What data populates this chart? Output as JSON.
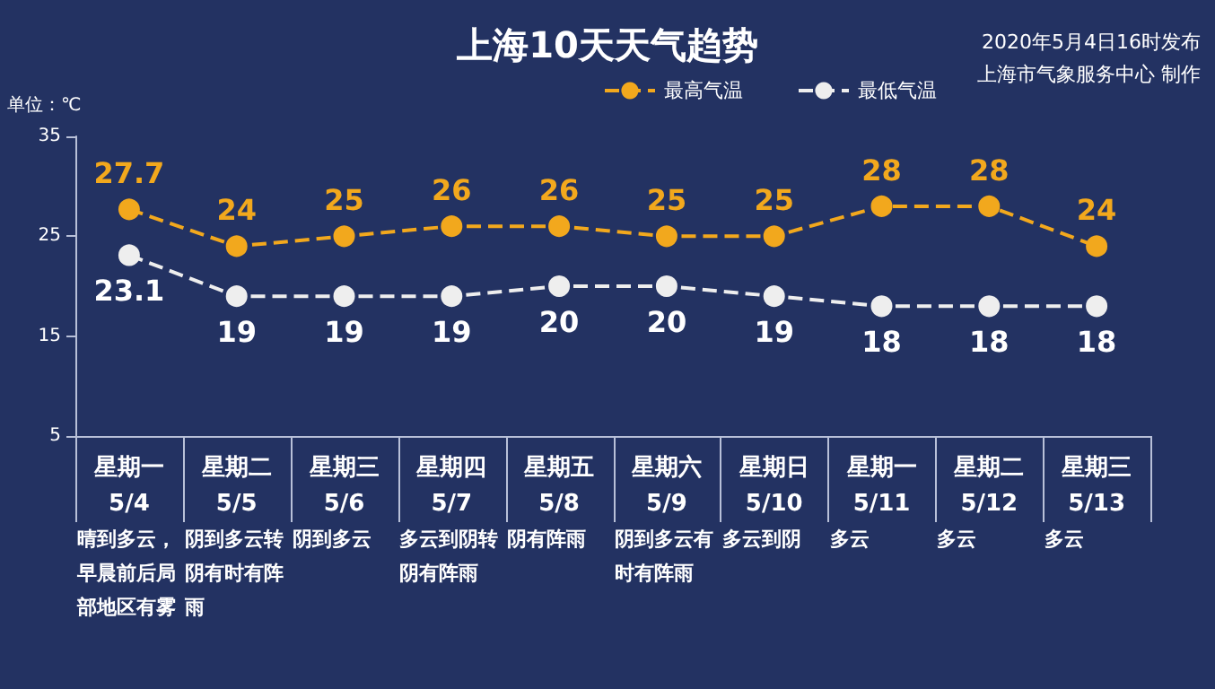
{
  "chart_data": {
    "type": "line",
    "title": "上海10天天气趋势",
    "ylabel": "单位：℃",
    "categories": [
      "星期一\n5/4",
      "星期二\n5/5",
      "星期三\n5/6",
      "星期四\n5/7",
      "星期五\n5/8",
      "星期六\n5/9",
      "星期日\n5/10",
      "星期一\n5/11",
      "星期二\n5/12",
      "星期三\n5/13"
    ],
    "series": [
      {
        "name": "最高气温",
        "color": "#f2a81d",
        "values": [
          27.7,
          24,
          25,
          26,
          26,
          25,
          25,
          28,
          28,
          24
        ]
      },
      {
        "name": "最低气温",
        "color": "#eeeeee",
        "values": [
          23.1,
          19,
          19,
          19,
          20,
          20,
          19,
          18,
          18,
          18
        ]
      }
    ],
    "ylim": [
      5,
      35
    ],
    "yticks": [
      5,
      15,
      25,
      35
    ],
    "grid": false,
    "legend": "top right",
    "marker": "circle",
    "line_style": "dashed",
    "data_labels": true,
    "annotations": [
      "2020年5月4日16时发布",
      "上海市气象服务中心 制作",
      "晴到多云，早晨前后局部地区有雾",
      "阴到多云转阴有时有阵雨",
      "阴到多云",
      "多云到阴转阴有阵雨",
      "阴有阵雨",
      "阴到多云有时有阵雨",
      "多云到阴",
      "多云",
      "多云",
      "多云"
    ]
  }
}
